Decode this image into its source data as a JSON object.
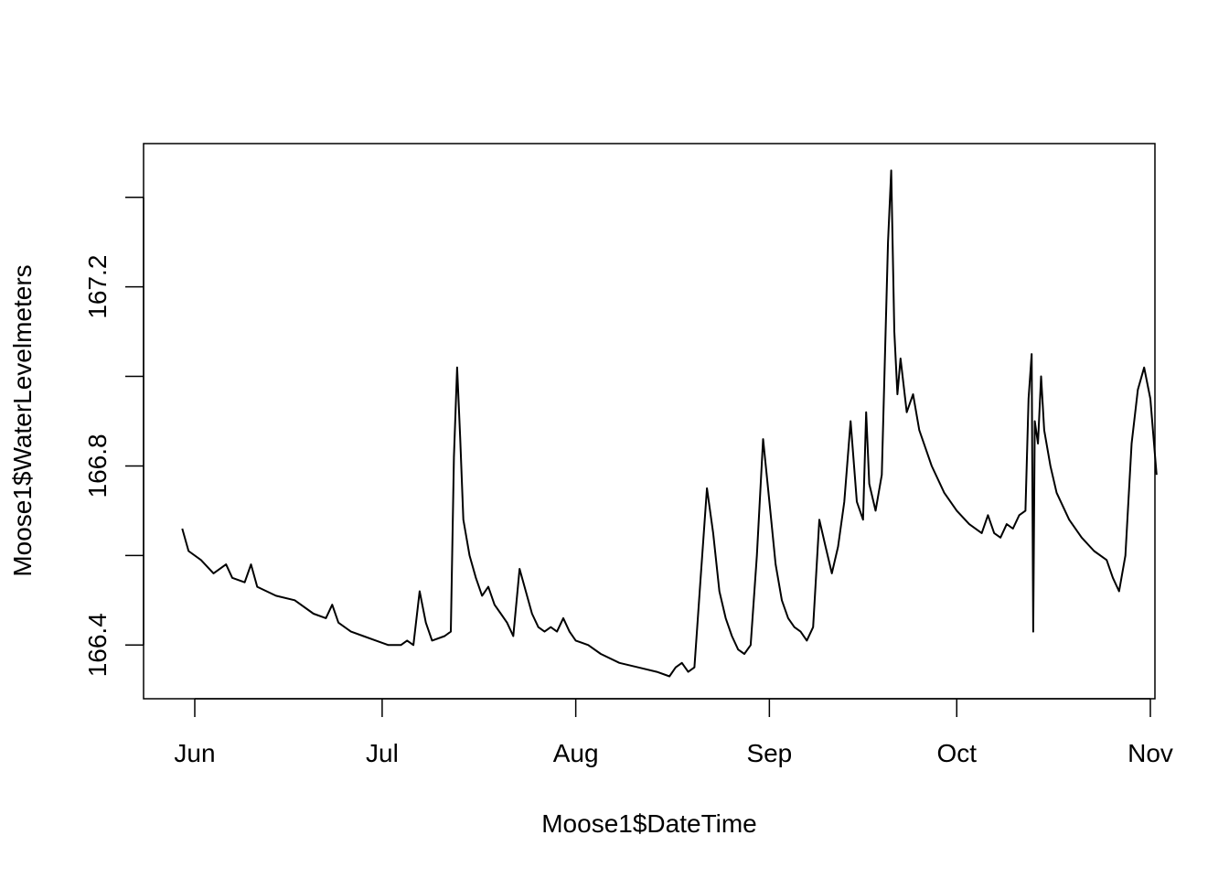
{
  "chart_data": {
    "type": "line",
    "xlabel": "Moose1$DateTime",
    "ylabel": "Moose1$WaterLevelmeters",
    "x_ticks": [
      {
        "date": "2021-06-01",
        "label": "Jun"
      },
      {
        "date": "2021-07-01",
        "label": "Jul"
      },
      {
        "date": "2021-08-01",
        "label": "Aug"
      },
      {
        "date": "2021-09-01",
        "label": "Sep"
      },
      {
        "date": "2021-10-01",
        "label": "Oct"
      },
      {
        "date": "2021-11-01",
        "label": "Nov"
      }
    ],
    "y_ticks": [
      {
        "value": 166.4,
        "label": "166.4"
      },
      {
        "value": 166.6,
        "label": ""
      },
      {
        "value": 166.8,
        "label": "166.8"
      },
      {
        "value": 167.0,
        "label": ""
      },
      {
        "value": 167.2,
        "label": "167.2"
      },
      {
        "value": 167.4,
        "label": ""
      }
    ],
    "xlim": [
      "2021-05-27",
      "2021-11-01"
    ],
    "ylim": [
      166.28,
      167.52
    ],
    "grid": false,
    "legend": false,
    "line_color": "#000000",
    "series": [
      {
        "points": [
          [
            "2021-05-30",
            166.66
          ],
          [
            "2021-05-31",
            166.61
          ],
          [
            "2021-06-02",
            166.59
          ],
          [
            "2021-06-04",
            166.56
          ],
          [
            "2021-06-06",
            166.58
          ],
          [
            "2021-06-07",
            166.55
          ],
          [
            "2021-06-09",
            166.54
          ],
          [
            "2021-06-10",
            166.58
          ],
          [
            "2021-06-11",
            166.53
          ],
          [
            "2021-06-14",
            166.51
          ],
          [
            "2021-06-17",
            166.5
          ],
          [
            "2021-06-20",
            166.47
          ],
          [
            "2021-06-22",
            166.46
          ],
          [
            "2021-06-23",
            166.49
          ],
          [
            "2021-06-24",
            166.45
          ],
          [
            "2021-06-26",
            166.43
          ],
          [
            "2021-06-28",
            166.42
          ],
          [
            "2021-06-30",
            166.41
          ],
          [
            "2021-07-02",
            166.4
          ],
          [
            "2021-07-04",
            166.4
          ],
          [
            "2021-07-05",
            166.41
          ],
          [
            "2021-07-06",
            166.4
          ],
          [
            "2021-07-07",
            166.52
          ],
          [
            "2021-07-08",
            166.45
          ],
          [
            "2021-07-09",
            166.41
          ],
          [
            "2021-07-11",
            166.42
          ],
          [
            "2021-07-12",
            166.43
          ],
          [
            "2021-07-12T12:00",
            166.82
          ],
          [
            "2021-07-13",
            167.02
          ],
          [
            "2021-07-13T12:00",
            166.86
          ],
          [
            "2021-07-14",
            166.68
          ],
          [
            "2021-07-15",
            166.6
          ],
          [
            "2021-07-16",
            166.55
          ],
          [
            "2021-07-17",
            166.51
          ],
          [
            "2021-07-18",
            166.53
          ],
          [
            "2021-07-19",
            166.49
          ],
          [
            "2021-07-20",
            166.47
          ],
          [
            "2021-07-21",
            166.45
          ],
          [
            "2021-07-22",
            166.42
          ],
          [
            "2021-07-23",
            166.57
          ],
          [
            "2021-07-24",
            166.52
          ],
          [
            "2021-07-25",
            166.47
          ],
          [
            "2021-07-26",
            166.44
          ],
          [
            "2021-07-27",
            166.43
          ],
          [
            "2021-07-28",
            166.44
          ],
          [
            "2021-07-29",
            166.43
          ],
          [
            "2021-07-30",
            166.46
          ],
          [
            "2021-07-31",
            166.43
          ],
          [
            "2021-08-01",
            166.41
          ],
          [
            "2021-08-03",
            166.4
          ],
          [
            "2021-08-05",
            166.38
          ],
          [
            "2021-08-08",
            166.36
          ],
          [
            "2021-08-11",
            166.35
          ],
          [
            "2021-08-14",
            166.34
          ],
          [
            "2021-08-16",
            166.33
          ],
          [
            "2021-08-17",
            166.35
          ],
          [
            "2021-08-18",
            166.36
          ],
          [
            "2021-08-19",
            166.34
          ],
          [
            "2021-08-20",
            166.35
          ],
          [
            "2021-08-21",
            166.55
          ],
          [
            "2021-08-22",
            166.75
          ],
          [
            "2021-08-23",
            166.65
          ],
          [
            "2021-08-24",
            166.52
          ],
          [
            "2021-08-25",
            166.46
          ],
          [
            "2021-08-26",
            166.42
          ],
          [
            "2021-08-27",
            166.39
          ],
          [
            "2021-08-28",
            166.38
          ],
          [
            "2021-08-29",
            166.4
          ],
          [
            "2021-08-30",
            166.6
          ],
          [
            "2021-08-31",
            166.86
          ],
          [
            "2021-09-01",
            166.72
          ],
          [
            "2021-09-02",
            166.58
          ],
          [
            "2021-09-03",
            166.5
          ],
          [
            "2021-09-04",
            166.46
          ],
          [
            "2021-09-05",
            166.44
          ],
          [
            "2021-09-06",
            166.43
          ],
          [
            "2021-09-07",
            166.41
          ],
          [
            "2021-09-08",
            166.44
          ],
          [
            "2021-09-09",
            166.68
          ],
          [
            "2021-09-10",
            166.62
          ],
          [
            "2021-09-11",
            166.56
          ],
          [
            "2021-09-12",
            166.62
          ],
          [
            "2021-09-13",
            166.72
          ],
          [
            "2021-09-14",
            166.9
          ],
          [
            "2021-09-15",
            166.72
          ],
          [
            "2021-09-16",
            166.68
          ],
          [
            "2021-09-16T12:00",
            166.92
          ],
          [
            "2021-09-17",
            166.76
          ],
          [
            "2021-09-18",
            166.7
          ],
          [
            "2021-09-19",
            166.78
          ],
          [
            "2021-09-20",
            167.3
          ],
          [
            "2021-09-20T12:00",
            167.46
          ],
          [
            "2021-09-21",
            167.1
          ],
          [
            "2021-09-21T12:00",
            166.96
          ],
          [
            "2021-09-22",
            167.04
          ],
          [
            "2021-09-23",
            166.92
          ],
          [
            "2021-09-24",
            166.96
          ],
          [
            "2021-09-25",
            166.88
          ],
          [
            "2021-09-26",
            166.84
          ],
          [
            "2021-09-27",
            166.8
          ],
          [
            "2021-09-29",
            166.74
          ],
          [
            "2021-10-01",
            166.7
          ],
          [
            "2021-10-03",
            166.67
          ],
          [
            "2021-10-05",
            166.65
          ],
          [
            "2021-10-06",
            166.69
          ],
          [
            "2021-10-07",
            166.65
          ],
          [
            "2021-10-08",
            166.64
          ],
          [
            "2021-10-09",
            166.67
          ],
          [
            "2021-10-10",
            166.66
          ],
          [
            "2021-10-11",
            166.69
          ],
          [
            "2021-10-12",
            166.7
          ],
          [
            "2021-10-12T12:00",
            166.95
          ],
          [
            "2021-10-13",
            167.05
          ],
          [
            "2021-10-13T06:00",
            166.43
          ],
          [
            "2021-10-13T12:00",
            166.9
          ],
          [
            "2021-10-14",
            166.85
          ],
          [
            "2021-10-14T12:00",
            167.0
          ],
          [
            "2021-10-15",
            166.88
          ],
          [
            "2021-10-16",
            166.8
          ],
          [
            "2021-10-17",
            166.74
          ],
          [
            "2021-10-19",
            166.68
          ],
          [
            "2021-10-21",
            166.64
          ],
          [
            "2021-10-23",
            166.61
          ],
          [
            "2021-10-25",
            166.59
          ],
          [
            "2021-10-26",
            166.55
          ],
          [
            "2021-10-27",
            166.52
          ],
          [
            "2021-10-28",
            166.6
          ],
          [
            "2021-10-29",
            166.85
          ],
          [
            "2021-10-30",
            166.97
          ],
          [
            "2021-10-31",
            167.02
          ],
          [
            "2021-11-01",
            166.95
          ],
          [
            "2021-11-02",
            166.78
          ]
        ]
      }
    ]
  }
}
